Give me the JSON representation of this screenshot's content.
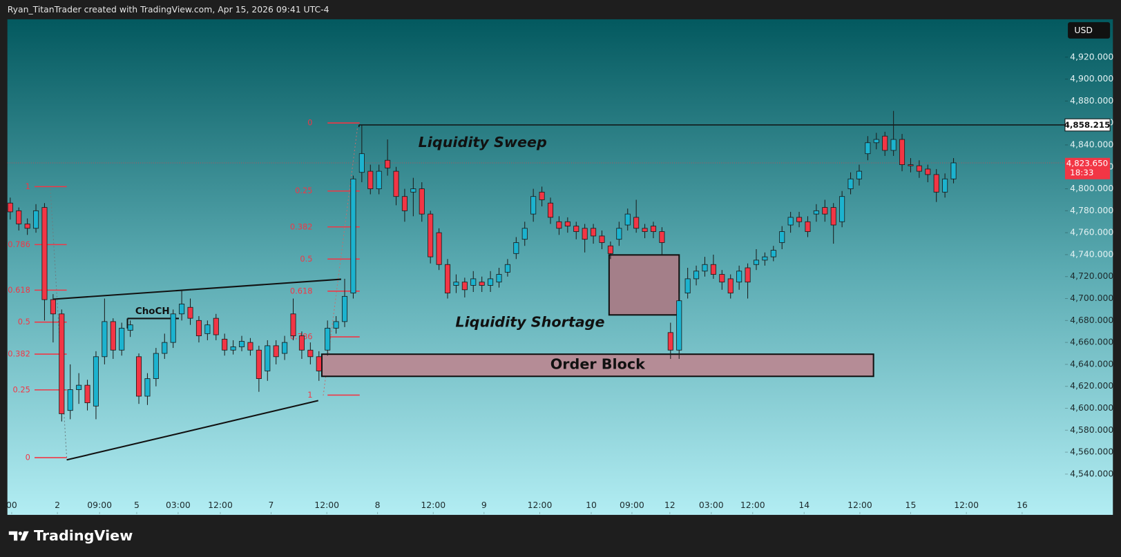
{
  "header": {
    "attribution": "Ryan_TitanTrader created with TradingView.com, Apr 15, 2026 09:41 UTC-4"
  },
  "footer": {
    "logo": "TradingView"
  },
  "chart_data": {
    "type": "candlestick",
    "currency": "USD",
    "open": [
      4787,
      4780,
      4768,
      4764,
      4783,
      4699,
      4686,
      4598,
      4617,
      4621,
      4602,
      4647,
      4679,
      4653,
      4671,
      4647,
      4611,
      4627,
      4650,
      4660,
      4686,
      4692,
      4680,
      4668,
      4682,
      4663,
      4653,
      4656,
      4660,
      4653,
      4634,
      4657,
      4650,
      4686,
      4666,
      4653,
      4647,
      4653,
      4673,
      4679,
      4705,
      4815,
      4816,
      4800,
      4826,
      4816,
      4793,
      4797,
      4800,
      4777,
      4760,
      4731,
      4712,
      4715,
      4712,
      4715,
      4712,
      4715,
      4724,
      4741,
      4754,
      4777,
      4797,
      4787,
      4770,
      4770,
      4766,
      4764,
      4764,
      4757,
      4748,
      4754,
      4767,
      4774,
      4764,
      4766,
      4761,
      4669,
      4653,
      4705,
      4718,
      4725,
      4731,
      4722,
      4718,
      4715,
      4728,
      4731,
      4735,
      4738,
      4751,
      4767,
      4774,
      4770,
      4777,
      4783,
      4783,
      4770,
      4800,
      4809,
      4832,
      4842,
      4848,
      4835,
      4845,
      4822,
      4821,
      4818,
      4813,
      4797,
      4809
    ],
    "high": [
      4792,
      4783,
      4773,
      4786,
      4787,
      4704,
      4690,
      4640,
      4632,
      4626,
      4652,
      4700,
      4682,
      4678,
      4680,
      4650,
      4632,
      4655,
      4668,
      4690,
      4708,
      4700,
      4684,
      4680,
      4686,
      4668,
      4662,
      4666,
      4664,
      4657,
      4662,
      4662,
      4666,
      4700,
      4670,
      4660,
      4652,
      4680,
      4684,
      4718,
      4812,
      4858,
      4822,
      4822,
      4845,
      4820,
      4800,
      4810,
      4806,
      4780,
      4764,
      4736,
      4722,
      4719,
      4725,
      4720,
      4725,
      4728,
      4736,
      4756,
      4770,
      4800,
      4802,
      4792,
      4775,
      4774,
      4770,
      4768,
      4768,
      4762,
      4752,
      4770,
      4782,
      4790,
      4768,
      4770,
      4765,
      4678,
      4705,
      4728,
      4730,
      4738,
      4740,
      4726,
      4722,
      4730,
      4732,
      4745,
      4742,
      4748,
      4766,
      4779,
      4779,
      4775,
      4786,
      4790,
      4787,
      4798,
      4815,
      4822,
      4848,
      4851,
      4852,
      4871,
      4850,
      4828,
      4826,
      4822,
      4818,
      4814,
      4828
    ],
    "low": [
      4772,
      4762,
      4758,
      4760,
      4680,
      4660,
      4588,
      4590,
      4604,
      4598,
      4590,
      4640,
      4645,
      4648,
      4665,
      4604,
      4603,
      4620,
      4645,
      4655,
      4680,
      4676,
      4660,
      4662,
      4662,
      4648,
      4649,
      4652,
      4648,
      4615,
      4625,
      4640,
      4644,
      4662,
      4645,
      4640,
      4625,
      4648,
      4668,
      4674,
      4700,
      4806,
      4795,
      4795,
      4812,
      4785,
      4770,
      4775,
      4770,
      4732,
      4726,
      4700,
      4705,
      4701,
      4706,
      4706,
      4706,
      4710,
      4720,
      4736,
      4748,
      4770,
      4784,
      4768,
      4758,
      4760,
      4754,
      4742,
      4750,
      4745,
      4736,
      4748,
      4762,
      4760,
      4755,
      4755,
      4740,
      4645,
      4645,
      4700,
      4712,
      4720,
      4718,
      4708,
      4700,
      4708,
      4700,
      4726,
      4730,
      4734,
      4745,
      4760,
      4765,
      4756,
      4770,
      4770,
      4750,
      4765,
      4795,
      4803,
      4826,
      4836,
      4830,
      4830,
      4816,
      4815,
      4810,
      4806,
      4788,
      4792,
      4805
    ],
    "close": [
      4779,
      4768,
      4764,
      4780,
      4699,
      4686,
      4595,
      4617,
      4621,
      4605,
      4647,
      4679,
      4653,
      4673,
      4676,
      4611,
      4627,
      4650,
      4660,
      4686,
      4695,
      4682,
      4666,
      4676,
      4667,
      4653,
      4656,
      4661,
      4653,
      4627,
      4657,
      4647,
      4660,
      4666,
      4653,
      4647,
      4634,
      4673,
      4679,
      4702,
      4809,
      4832,
      4800,
      4816,
      4819,
      4793,
      4780,
      4800,
      4777,
      4738,
      4731,
      4705,
      4715,
      4708,
      4718,
      4712,
      4718,
      4722,
      4731,
      4751,
      4764,
      4793,
      4790,
      4774,
      4764,
      4766,
      4761,
      4754,
      4757,
      4751,
      4741,
      4764,
      4777,
      4764,
      4761,
      4761,
      4751,
      4653,
      4698,
      4718,
      4725,
      4731,
      4722,
      4715,
      4705,
      4725,
      4715,
      4735,
      4738,
      4744,
      4761,
      4774,
      4770,
      4761,
      4780,
      4777,
      4767,
      4793,
      4809,
      4816,
      4842,
      4845,
      4835,
      4845,
      4822,
      4821,
      4816,
      4813,
      4797,
      4809,
      4823.65
    ],
    "up_color": "#1cb3cf",
    "down_color": "#f23645",
    "xlim": [
      -0.33,
      123
    ],
    "xticks": [
      {
        "value": 0.17,
        "label": "00"
      },
      {
        "value": 5.5,
        "label": "2"
      },
      {
        "value": 10.42,
        "label": "09:00"
      },
      {
        "value": 14.75,
        "label": "5"
      },
      {
        "value": 19.58,
        "label": "03:00"
      },
      {
        "value": 24.5,
        "label": "12:00"
      },
      {
        "value": 30.42,
        "label": "7"
      },
      {
        "value": 36.92,
        "label": "12:00"
      },
      {
        "value": 42.83,
        "label": "8"
      },
      {
        "value": 49.33,
        "label": "12:00"
      },
      {
        "value": 55.25,
        "label": "9"
      },
      {
        "value": 61.75,
        "label": "12:00"
      },
      {
        "value": 67.75,
        "label": "10"
      },
      {
        "value": 72.5,
        "label": "09:00"
      },
      {
        "value": 76.92,
        "label": "12"
      },
      {
        "value": 81.75,
        "label": "03:00"
      },
      {
        "value": 86.58,
        "label": "12:00"
      },
      {
        "value": 92.58,
        "label": "14"
      },
      {
        "value": 99.08,
        "label": "12:00"
      },
      {
        "value": 105,
        "label": "15"
      },
      {
        "value": 111.5,
        "label": "12:00"
      },
      {
        "value": 118,
        "label": "16"
      }
    ],
    "ylim": [
      4503.5,
      4954.5
    ],
    "yticks": [
      {
        "value": 4540,
        "label": "4,540.000"
      },
      {
        "value": 4560,
        "label": "4,560.000"
      },
      {
        "value": 4580,
        "label": "4,580.000"
      },
      {
        "value": 4600,
        "label": "4,600.000"
      },
      {
        "value": 4620,
        "label": "4,620.000"
      },
      {
        "value": 4640,
        "label": "4,640.000"
      },
      {
        "value": 4660,
        "label": "4,660.000"
      },
      {
        "value": 4680,
        "label": "4,680.000"
      },
      {
        "value": 4700,
        "label": "4,700.000"
      },
      {
        "value": 4720,
        "label": "4,720.000"
      },
      {
        "value": 4740,
        "label": "4,740.000"
      },
      {
        "value": 4760,
        "label": "4,760.000"
      },
      {
        "value": 4780,
        "label": "4,780.000"
      },
      {
        "value": 4800,
        "label": "4,800.000"
      },
      {
        "value": 4820,
        "label": "4,820.000"
      },
      {
        "value": 4840,
        "label": "4,840.000"
      },
      {
        "value": 4860,
        "label": "4,860.000"
      },
      {
        "value": 4880,
        "label": "4,880.000"
      },
      {
        "value": 4900,
        "label": "4,900.000"
      },
      {
        "value": 4920,
        "label": "4,920.000"
      }
    ],
    "price_lines": [
      {
        "value": 4858.215,
        "label": "4,858.215"
      }
    ],
    "current_price": {
      "value": 4823.65,
      "label": "4,823.650",
      "countdown": "18:33"
    },
    "fibs": [
      {
        "anchors": [
          4555,
          4802
        ],
        "levels": [
          1,
          0.786,
          0.618,
          0.5,
          0.382,
          0.25,
          0
        ]
      },
      {
        "anchors": [
          4860,
          4612
        ],
        "levels": [
          0,
          0.25,
          0.382,
          0.5,
          0.618,
          0.786,
          1
        ]
      }
    ],
    "annotations": [
      "Liquidity Sweep",
      "Liquidity Shortage",
      "Order Block",
      "ChoCH"
    ]
  }
}
